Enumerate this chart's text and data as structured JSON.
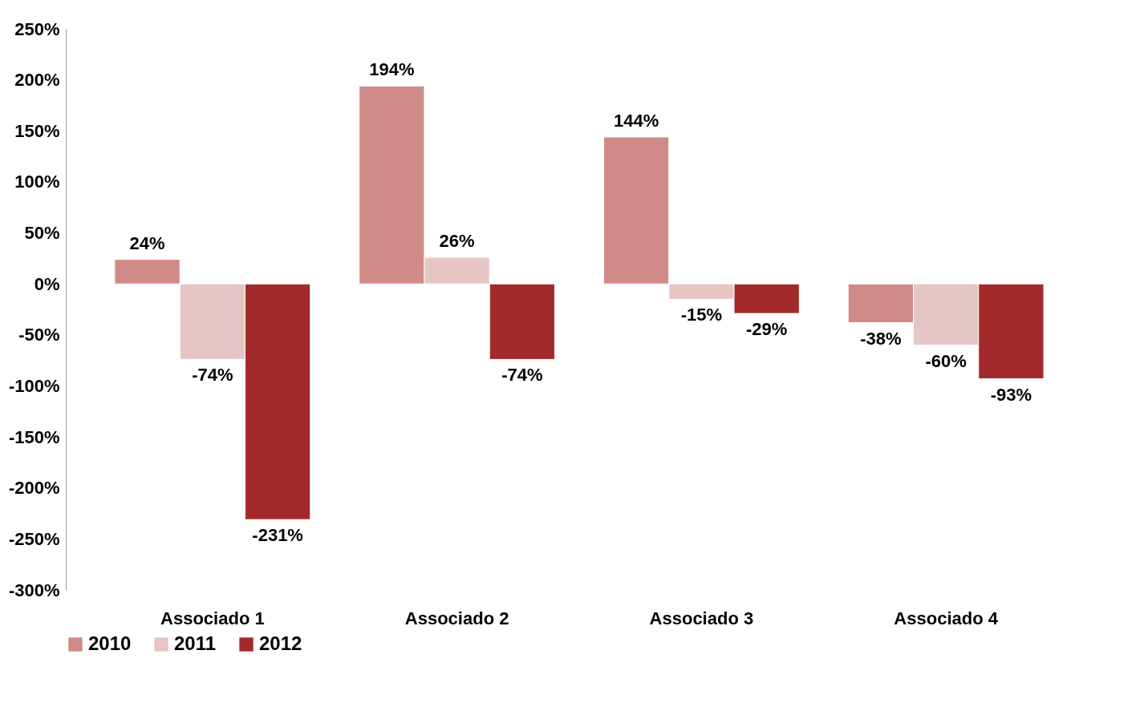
{
  "chart_data": {
    "type": "bar",
    "categories": [
      "Associado 1",
      "Associado 2",
      "Associado 3",
      "Associado 4"
    ],
    "series": [
      {
        "name": "2010",
        "color": "#d08a88",
        "values": [
          24,
          194,
          144,
          -38
        ],
        "value_labels": [
          "24%",
          "194%",
          "144%",
          "-38%"
        ]
      },
      {
        "name": "2011",
        "color": "#e6c6c5",
        "values": [
          -74,
          26,
          -15,
          -60
        ],
        "value_labels": [
          "-74%",
          "26%",
          "-15%",
          "-60%"
        ]
      },
      {
        "name": "2012",
        "color": "#a32a2a",
        "values": [
          -231,
          -74,
          -29,
          -93
        ],
        "value_labels": [
          "-231%",
          "-74%",
          "-29%",
          "-93%"
        ]
      }
    ],
    "ylim": [
      -300,
      250
    ],
    "yticks": [
      {
        "value": 250,
        "label": "250%"
      },
      {
        "value": 200,
        "label": "200%"
      },
      {
        "value": 150,
        "label": "150%"
      },
      {
        "value": 100,
        "label": "100%"
      },
      {
        "value": 50,
        "label": "50%"
      },
      {
        "value": 0,
        "label": "0%"
      },
      {
        "value": -50,
        "label": "-50%"
      },
      {
        "value": -100,
        "label": "-100%"
      },
      {
        "value": -150,
        "label": "-150%"
      },
      {
        "value": -200,
        "label": "-200%"
      },
      {
        "value": -250,
        "label": "-250%"
      },
      {
        "value": -300,
        "label": "-300%"
      }
    ],
    "grid": false,
    "legend": "bottom"
  }
}
